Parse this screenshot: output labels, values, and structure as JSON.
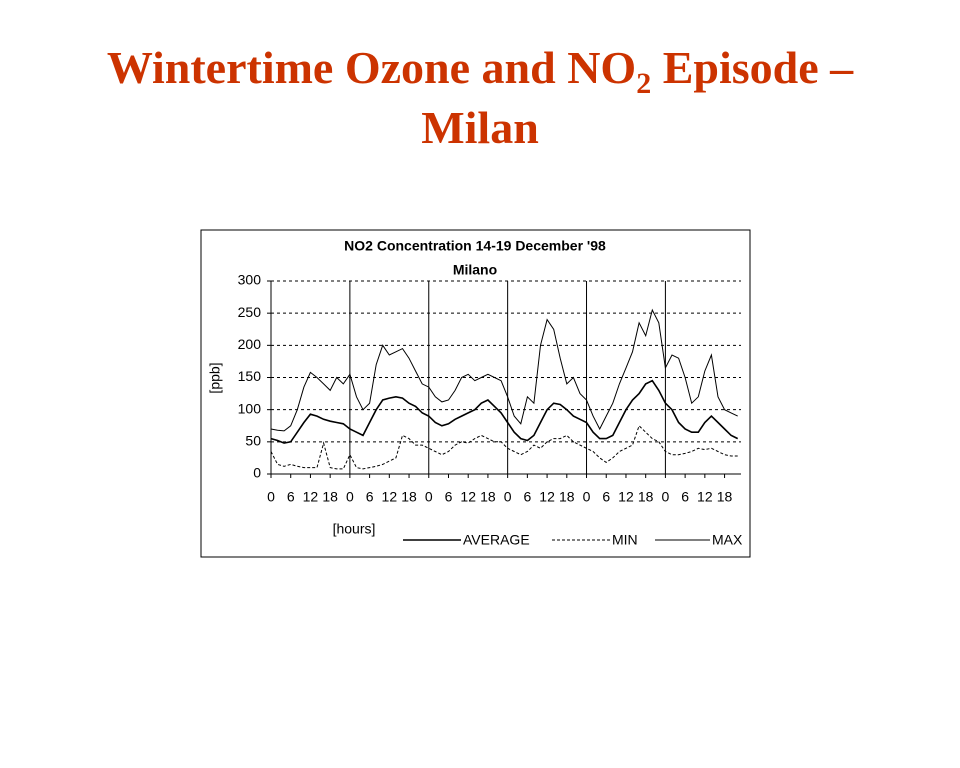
{
  "slide_title": {
    "before": "Wintertime Ozone and NO",
    "subscript": "2",
    "after": " Episode –",
    "line2": "Milan"
  },
  "chart_data": {
    "type": "line",
    "title": "NO2  Concentration 14-19 December '98",
    "subtitle": "Milano",
    "y_label": "[ppb]",
    "x_label": "[hours]",
    "x": [
      0,
      2,
      4,
      6,
      8,
      10,
      12,
      14,
      16,
      18,
      20,
      22,
      24,
      26,
      28,
      30,
      32,
      34,
      36,
      38,
      40,
      42,
      44,
      46,
      48,
      50,
      52,
      54,
      56,
      58,
      60,
      62,
      64,
      66,
      68,
      70,
      72,
      74,
      76,
      78,
      80,
      82,
      84,
      86,
      88,
      90,
      92,
      94,
      96,
      98,
      100,
      102,
      104,
      106,
      108,
      110,
      112,
      114,
      116,
      118,
      120,
      122,
      124,
      126,
      128,
      130,
      132,
      134,
      136,
      138,
      140,
      142
    ],
    "series": [
      {
        "name": "AVERAGE",
        "color": "#000000",
        "dash": false,
        "values": [
          55,
          52,
          48,
          50,
          65,
          80,
          93,
          90,
          85,
          82,
          80,
          78,
          70,
          65,
          60,
          80,
          100,
          115,
          118,
          120,
          118,
          110,
          105,
          95,
          90,
          80,
          75,
          78,
          85,
          90,
          95,
          100,
          110,
          115,
          105,
          95,
          80,
          65,
          55,
          52,
          60,
          80,
          100,
          110,
          108,
          100,
          90,
          85,
          80,
          65,
          55,
          55,
          60,
          80,
          100,
          115,
          125,
          140,
          145,
          130,
          110,
          100,
          80,
          70,
          65,
          65,
          80,
          90,
          80,
          70,
          60,
          55
        ]
      },
      {
        "name": "MIN",
        "color": "#000000",
        "dash": true,
        "values": [
          35,
          15,
          12,
          15,
          12,
          10,
          10,
          10,
          48,
          10,
          8,
          8,
          30,
          10,
          8,
          10,
          12,
          15,
          20,
          25,
          60,
          55,
          45,
          45,
          40,
          35,
          30,
          35,
          45,
          50,
          48,
          55,
          60,
          55,
          50,
          50,
          40,
          35,
          30,
          35,
          45,
          40,
          50,
          55,
          55,
          60,
          50,
          45,
          40,
          35,
          25,
          18,
          25,
          35,
          40,
          45,
          75,
          65,
          55,
          50,
          35,
          30,
          30,
          32,
          35,
          40,
          38,
          40,
          35,
          30,
          28,
          28
        ]
      },
      {
        "name": "MAX",
        "color": "#000000",
        "dash": false,
        "values": [
          70,
          68,
          67,
          75,
          100,
          135,
          158,
          150,
          140,
          130,
          150,
          140,
          155,
          120,
          100,
          110,
          170,
          200,
          185,
          190,
          195,
          180,
          160,
          140,
          135,
          120,
          112,
          115,
          130,
          150,
          155,
          145,
          150,
          155,
          150,
          145,
          120,
          90,
          78,
          120,
          110,
          200,
          240,
          225,
          180,
          140,
          150,
          125,
          115,
          90,
          70,
          90,
          110,
          140,
          165,
          190,
          235,
          215,
          255,
          235,
          165,
          185,
          180,
          150,
          110,
          120,
          160,
          185,
          120,
          100,
          95,
          90
        ]
      }
    ],
    "xlim": [
      0,
      143
    ],
    "xticks": [
      0,
      6,
      12,
      18,
      {
        "value": 24,
        "label": "0"
      },
      {
        "value": 30,
        "label": "6"
      },
      {
        "value": 36,
        "label": "12"
      },
      {
        "value": 42,
        "label": "18"
      },
      {
        "value": 48,
        "label": "0"
      },
      {
        "value": 54,
        "label": "6"
      },
      {
        "value": 60,
        "label": "12"
      },
      {
        "value": 66,
        "label": "18"
      },
      {
        "value": 72,
        "label": "0"
      },
      {
        "value": 78,
        "label": "6"
      },
      {
        "value": 84,
        "label": "12"
      },
      {
        "value": 90,
        "label": "18"
      },
      {
        "value": 96,
        "label": "0"
      },
      {
        "value": 102,
        "label": "6"
      },
      {
        "value": 108,
        "label": "12"
      },
      {
        "value": 114,
        "label": "18"
      },
      {
        "value": 120,
        "label": "0"
      },
      {
        "value": 126,
        "label": "6"
      },
      {
        "value": 132,
        "label": "12"
      },
      {
        "value": 138,
        "label": "18"
      }
    ],
    "x_gridlines": [
      24,
      48,
      72,
      96,
      120
    ],
    "ylim": [
      0,
      300
    ],
    "yticks": [
      0,
      50,
      100,
      150,
      200,
      250,
      300
    ],
    "grid": true,
    "legend": "bottom"
  }
}
